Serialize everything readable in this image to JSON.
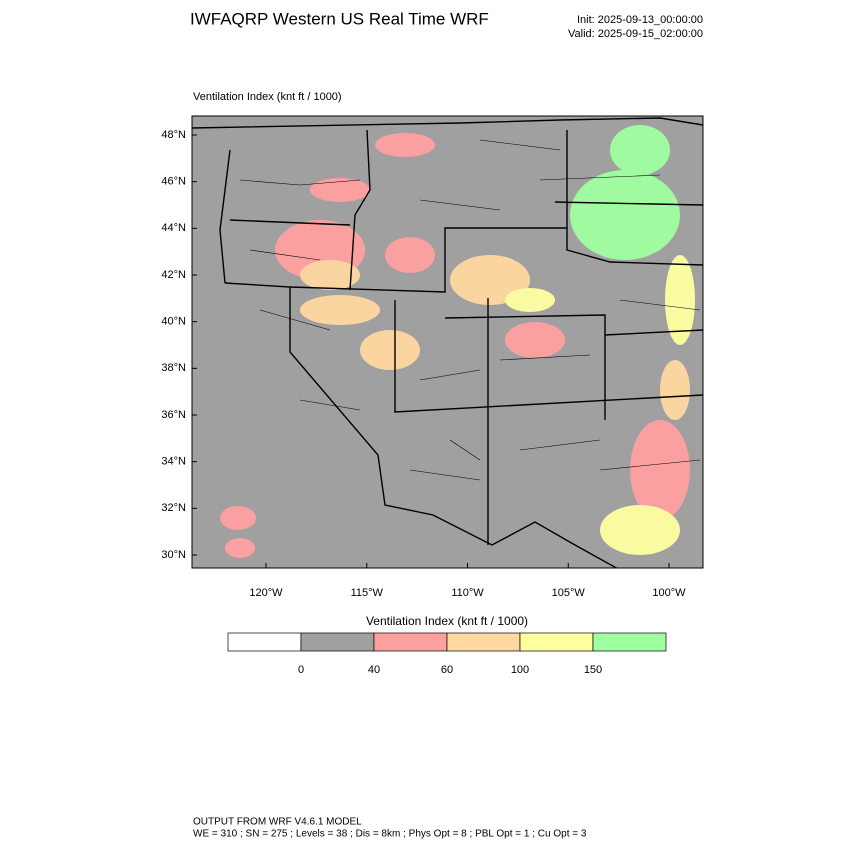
{
  "header": {
    "title": "IWFAQRP Western US Real Time WRF",
    "init": "Init: 2025-09-13_00:00:00",
    "valid": "Valid: 2025-09-15_02:00:00"
  },
  "map": {
    "subtitle": "Ventilation Index   (knt ft / 1000)",
    "lat_labels": [
      "48°N",
      "46°N",
      "44°N",
      "42°N",
      "40°N",
      "38°N",
      "36°N",
      "34°N",
      "32°N",
      "30°N"
    ],
    "lon_labels": [
      "120°W",
      "115°W",
      "110°W",
      "105°W",
      "100°W"
    ]
  },
  "colorbar": {
    "title": "Ventilation Index   (knt ft / 1000)",
    "colors": [
      "#ffffff",
      "#a0a0a0",
      "#ffa0a0",
      "#ffd8a0",
      "#ffffa0",
      "#a0ffa0"
    ],
    "labels": [
      0,
      40,
      60,
      100,
      150
    ]
  },
  "footer": {
    "line1": "OUTPUT FROM WRF V4.6.1 MODEL",
    "line2": "WE = 310 ; SN = 275 ; Levels = 38 ; Dis = 8km ; Phys Opt = 8 ; PBL Opt = 1 ; Cu Opt = 3"
  }
}
